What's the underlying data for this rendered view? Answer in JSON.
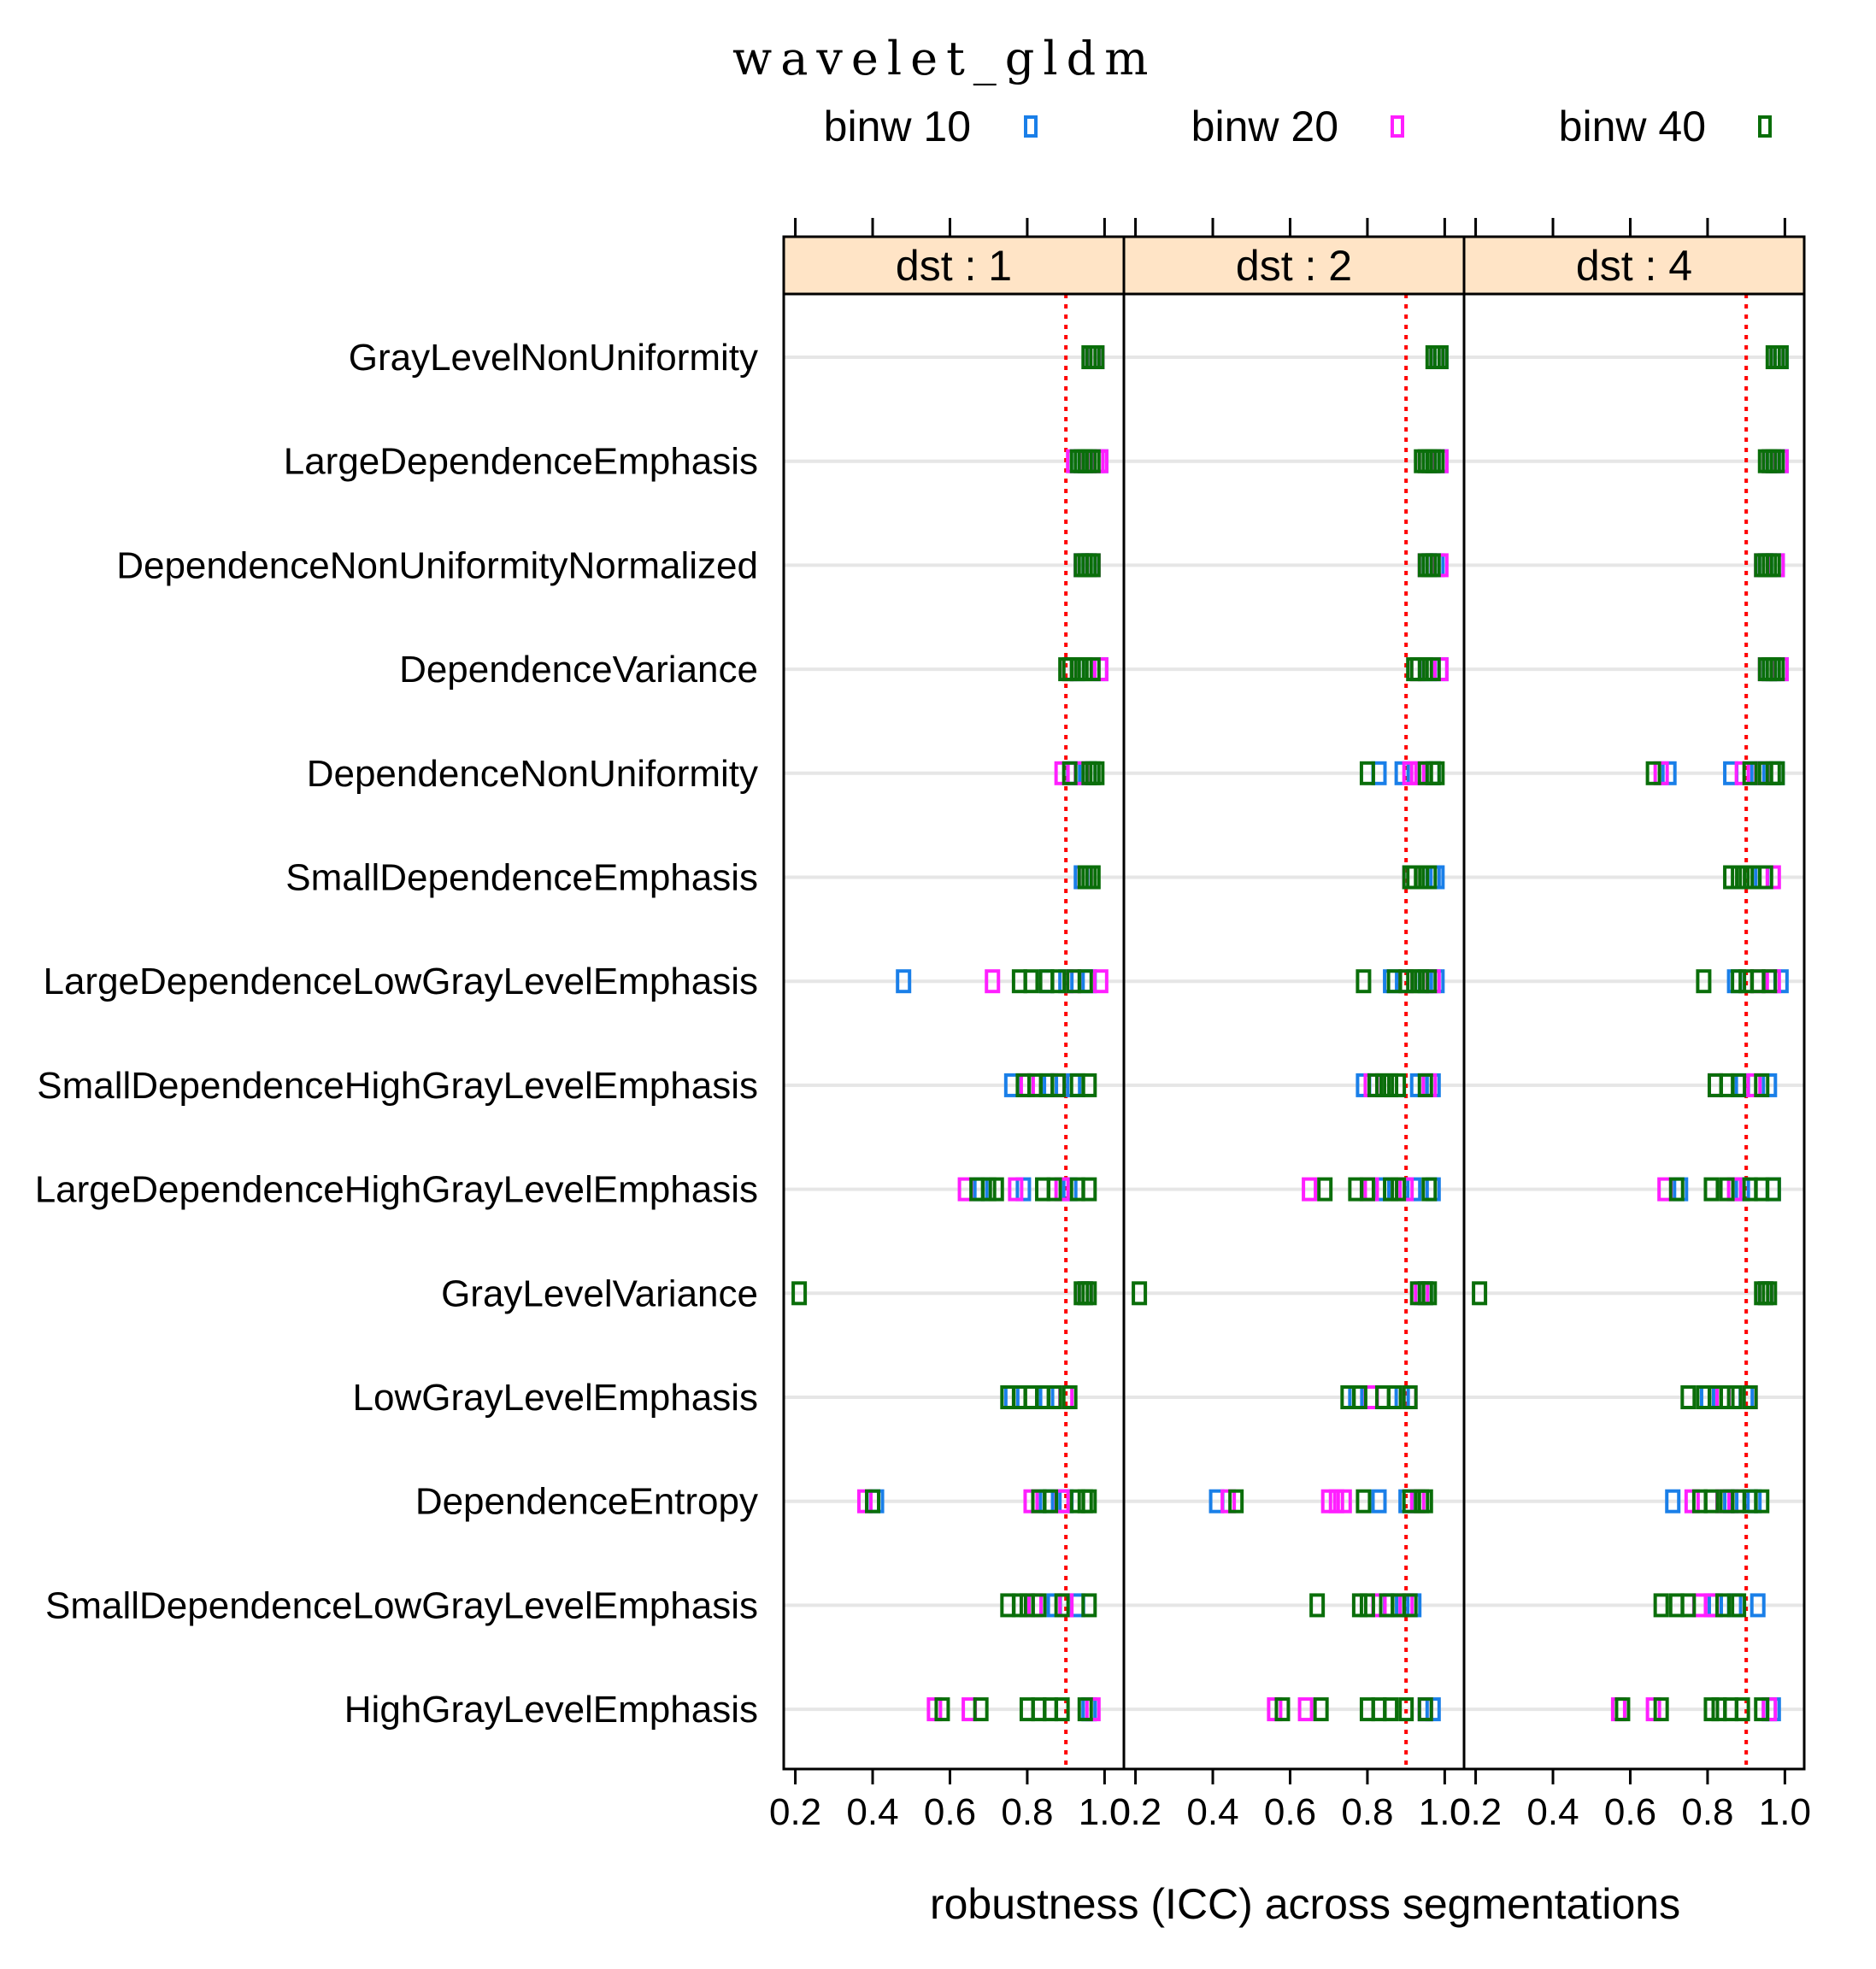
{
  "chart_data": {
    "type": "dotplot",
    "title": "wavelet_gldm",
    "xlabel": "robustness (ICC) across segmentations",
    "ylabel": "",
    "xlim": [
      0.17,
      1.05
    ],
    "x_ticks": [
      "0.2",
      "0.4",
      "0.6",
      "0.8",
      "1.0"
    ],
    "threshold": 0.9,
    "colors": {
      "binw 10": "#1a7fe8",
      "binw 20": "#ff1fff",
      "binw 40": "#0a6e0a",
      "threshold": "#ff0000",
      "strip": "#ffe4c6"
    },
    "legend": [
      {
        "label": "binw 10",
        "color": "#1a7fe8"
      },
      {
        "label": "binw 20",
        "color": "#ff1fff"
      },
      {
        "label": "binw 40",
        "color": "#0a6e0a"
      }
    ],
    "panels": [
      {
        "label": "dst : 1"
      },
      {
        "label": "dst : 2"
      },
      {
        "label": "dst : 4"
      }
    ],
    "features": [
      "GrayLevelNonUniformity",
      "LargeDependenceEmphasis",
      "DependenceNonUniformityNormalized",
      "DependenceVariance",
      "DependenceNonUniformity",
      "SmallDependenceEmphasis",
      "LargeDependenceLowGrayLevelEmphasis",
      "SmallDependenceHighGrayLevelEmphasis",
      "LargeDependenceHighGrayLevelEmphasis",
      "GrayLevelVariance",
      "LowGrayLevelEmphasis",
      "DependenceEntropy",
      "SmallDependenceLowGrayLevelEmphasis",
      "HighGrayLevelEmphasis"
    ],
    "values": [
      {
        "GrayLevelNonUniformity": {
          "binw 10": [
            0.97,
            0.98
          ],
          "binw 20": [
            0.97,
            0.98
          ],
          "binw 40": [
            0.96,
            0.97,
            0.98
          ]
        },
        "LargeDependenceEmphasis": {
          "binw 10": [
            0.93,
            0.95,
            0.99
          ],
          "binw 20": [
            0.92,
            0.98,
            0.99
          ],
          "binw 40": [
            0.93,
            0.94,
            0.95,
            0.96,
            0.97
          ]
        },
        "DependenceNonUniformityNormalized": {
          "binw 10": [
            0.94,
            0.96
          ],
          "binw 20": [
            0.94,
            0.97
          ],
          "binw 40": [
            0.94,
            0.95,
            0.96,
            0.97
          ]
        },
        "DependenceVariance": {
          "binw 10": [
            0.93,
            0.99
          ],
          "binw 20": [
            0.91,
            0.99
          ],
          "binw 40": [
            0.9,
            0.91,
            0.93,
            0.95,
            0.97
          ]
        },
        "DependenceNonUniformity": {
          "binw 10": [
            0.92,
            0.96
          ],
          "binw 20": [
            0.89,
            0.94
          ],
          "binw 40": [
            0.91,
            0.96,
            0.97,
            0.98
          ]
        },
        "SmallDependenceEmphasis": {
          "binw 10": [
            0.94
          ],
          "binw 20": [
            0.95
          ],
          "binw 40": [
            0.95,
            0.96,
            0.97
          ]
        },
        "LargeDependenceLowGrayLevelEmphasis": {
          "binw 10": [
            0.48,
            0.85,
            0.9,
            0.96
          ],
          "binw 20": [
            0.71,
            0.92,
            0.99
          ],
          "binw 40": [
            0.78,
            0.81,
            0.85,
            0.88,
            0.92,
            0.95
          ]
        },
        "SmallDependenceHighGrayLevelEmphasis": {
          "binw 10": [
            0.76,
            0.86,
            0.92
          ],
          "binw 20": [
            0.8,
            0.88
          ],
          "binw 40": [
            0.79,
            0.82,
            0.85,
            0.88,
            0.93,
            0.96
          ]
        },
        "LargeDependenceHighGrayLevelEmphasis": {
          "binw 10": [
            0.68,
            0.79,
            0.91
          ],
          "binw 20": [
            0.64,
            0.77,
            0.89
          ],
          "binw 40": [
            0.67,
            0.7,
            0.72,
            0.84,
            0.87,
            0.93,
            0.96
          ]
        },
        "GrayLevelVariance": {
          "binw 10": [
            0.95
          ],
          "binw 20": [
            0.95
          ],
          "binw 40": [
            0.21,
            0.94,
            0.95,
            0.96
          ]
        },
        "LowGrayLevelEmphasis": {
          "binw 10": [
            0.76,
            0.85
          ],
          "binw 20": [
            0.84,
            0.9
          ],
          "binw 40": [
            0.75,
            0.78,
            0.81,
            0.84,
            0.87,
            0.91
          ]
        },
        "DependenceEntropy": {
          "binw 10": [
            0.41,
            0.85,
            0.9
          ],
          "binw 20": [
            0.38,
            0.81,
            0.89
          ],
          "binw 40": [
            0.4,
            0.83,
            0.86,
            0.93,
            0.95,
            0.96
          ]
        },
        "SmallDependenceLowGrayLevelEmphasis": {
          "binw 10": [
            0.87,
            0.93
          ],
          "binw 20": [
            0.82,
            0.9
          ],
          "binw 40": [
            0.75,
            0.78,
            0.8,
            0.83,
            0.89,
            0.96
          ]
        },
        "HighGrayLevelEmphasis": {
          "binw 10": [
            0.96,
            0.96
          ],
          "binw 20": [
            0.56,
            0.65,
            0.97
          ],
          "binw 40": [
            0.58,
            0.68,
            0.8,
            0.83,
            0.86,
            0.89,
            0.95
          ]
        }
      },
      {
        "GrayLevelNonUniformity": {
          "binw 10": [
            0.98,
            0.99
          ],
          "binw 20": [
            0.98
          ],
          "binw 40": [
            0.97,
            0.98,
            0.99
          ]
        },
        "LargeDependenceEmphasis": {
          "binw 10": [
            0.97,
            0.99
          ],
          "binw 20": [
            0.95,
            0.99
          ],
          "binw 40": [
            0.94,
            0.95,
            0.96,
            0.97,
            0.98
          ]
        },
        "DependenceNonUniformityNormalized": {
          "binw 10": [
            0.96,
            0.98
          ],
          "binw 20": [
            0.95,
            0.99
          ],
          "binw 40": [
            0.95,
            0.96,
            0.97
          ]
        },
        "DependenceVariance": {
          "binw 10": [
            0.96,
            0.99
          ],
          "binw 20": [
            0.93,
            0.99
          ],
          "binw 40": [
            0.92,
            0.93,
            0.95,
            0.97
          ]
        },
        "DependenceNonUniformity": {
          "binw 10": [
            0.83,
            0.89,
            0.97
          ],
          "binw 20": [
            0.91,
            0.93
          ],
          "binw 40": [
            0.8,
            0.95,
            0.97,
            0.98
          ]
        },
        "SmallDependenceEmphasis": {
          "binw 10": [
            0.97,
            0.98
          ],
          "binw 20": [
            0.91
          ],
          "binw 40": [
            0.91,
            0.92,
            0.94,
            0.96
          ]
        },
        "LargeDependenceLowGrayLevelEmphasis": {
          "binw 10": [
            0.86,
            0.95,
            0.98
          ],
          "binw 20": [
            0.9,
            0.97
          ],
          "binw 40": [
            0.79,
            0.87,
            0.9,
            0.92,
            0.94,
            0.96
          ]
        },
        "SmallDependenceHighGrayLevelEmphasis": {
          "binw 10": [
            0.79,
            0.93,
            0.97
          ],
          "binw 20": [
            0.81,
            0.96
          ],
          "binw 40": [
            0.82,
            0.84,
            0.86,
            0.88,
            0.95
          ]
        },
        "LargeDependenceHighGrayLevelEmphasis": {
          "binw 10": [
            0.84,
            0.92,
            0.97
          ],
          "binw 20": [
            0.65,
            0.81,
            0.9
          ],
          "binw 40": [
            0.69,
            0.77,
            0.8,
            0.86,
            0.88,
            0.96
          ]
        },
        "GrayLevelVariance": {
          "binw 10": [
            0.95
          ],
          "binw 20": [
            0.94
          ],
          "binw 40": [
            0.21,
            0.93,
            0.95,
            0.96
          ]
        },
        "LowGrayLevelEmphasis": {
          "binw 10": [
            0.77,
            0.89
          ],
          "binw 20": [
            0.81,
            0.91
          ],
          "binw 40": [
            0.75,
            0.78,
            0.84,
            0.87,
            0.91
          ]
        },
        "DependenceEntropy": {
          "binw 10": [
            0.41,
            0.83,
            0.9
          ],
          "binw 20": [
            0.44,
            0.7,
            0.72,
            0.74,
            0.93
          ],
          "binw 40": [
            0.46,
            0.79,
            0.91,
            0.94,
            0.95
          ]
        },
        "SmallDependenceLowGrayLevelEmphasis": {
          "binw 10": [
            0.86,
            0.92
          ],
          "binw 20": [
            0.83,
            0.9
          ],
          "binw 40": [
            0.67,
            0.78,
            0.8,
            0.85,
            0.88,
            0.91
          ]
        },
        "HighGrayLevelEmphasis": {
          "binw 10": [
            0.95,
            0.97
          ],
          "binw 20": [
            0.56,
            0.64,
            0.95
          ],
          "binw 40": [
            0.58,
            0.68,
            0.8,
            0.83,
            0.86,
            0.9,
            0.95
          ]
        }
      },
      {
        "GrayLevelNonUniformity": {
          "binw 10": [
            0.98,
            0.99
          ],
          "binw 20": [
            0.98
          ],
          "binw 40": [
            0.97,
            0.98,
            0.99
          ]
        },
        "LargeDependenceEmphasis": {
          "binw 10": [
            0.97,
            0.99
          ],
          "binw 20": [
            0.96,
            0.99
          ],
          "binw 40": [
            0.95,
            0.96,
            0.97,
            0.98
          ]
        },
        "DependenceNonUniformityNormalized": {
          "binw 10": [
            0.95,
            0.98
          ],
          "binw 20": [
            0.94,
            0.98
          ],
          "binw 40": [
            0.94,
            0.95,
            0.96,
            0.97
          ]
        },
        "DependenceVariance": {
          "binw 10": [
            0.96,
            0.99
          ],
          "binw 20": [
            0.95,
            0.99
          ],
          "binw 40": [
            0.95,
            0.96,
            0.97,
            0.98
          ]
        },
        "DependenceNonUniformity": {
          "binw 10": [
            0.7,
            0.86,
            0.93,
            0.98
          ],
          "binw 20": [
            0.68,
            0.89,
            0.94
          ],
          "binw 40": [
            0.66,
            0.91,
            0.95,
            0.97,
            0.98
          ]
        },
        "SmallDependenceEmphasis": {
          "binw 10": [
            0.94
          ],
          "binw 20": [
            0.97
          ],
          "binw 40": [
            0.86,
            0.88,
            0.9,
            0.92,
            0.95
          ]
        },
        "LargeDependenceLowGrayLevelEmphasis": {
          "binw 10": [
            0.87,
            0.99
          ],
          "binw 20": [
            0.93,
            0.97
          ],
          "binw 40": [
            0.79,
            0.88,
            0.9,
            0.93,
            0.96
          ]
        },
        "SmallDependenceHighGrayLevelEmphasis": {
          "binw 10": [
            0.89,
            0.96
          ],
          "binw 20": [
            0.82,
            0.92
          ],
          "binw 40": [
            0.82,
            0.85,
            0.88,
            0.94
          ]
        },
        "LargeDependenceHighGrayLevelEmphasis": {
          "binw 10": [
            0.73,
            0.89,
            0.97
          ],
          "binw 20": [
            0.69,
            0.87
          ],
          "binw 40": [
            0.72,
            0.81,
            0.85,
            0.91,
            0.94,
            0.97
          ]
        },
        "GrayLevelVariance": {
          "binw 10": [
            0.95
          ],
          "binw 20": [
            0.95
          ],
          "binw 40": [
            0.21,
            0.94,
            0.95,
            0.96
          ]
        },
        "LowGrayLevelEmphasis": {
          "binw 10": [
            0.8,
            0.9
          ],
          "binw 20": [
            0.84,
            0.91
          ],
          "binw 40": [
            0.75,
            0.79,
            0.82,
            0.85,
            0.87,
            0.91
          ]
        },
        "DependenceEntropy": {
          "binw 10": [
            0.71,
            0.86,
            0.92
          ],
          "binw 20": [
            0.76,
            0.84,
            0.88
          ],
          "binw 40": [
            0.78,
            0.81,
            0.85,
            0.88,
            0.91,
            0.94
          ]
        },
        "SmallDependenceLowGrayLevelEmphasis": {
          "binw 10": [
            0.82,
            0.87,
            0.93
          ],
          "binw 20": [
            0.78,
            0.81
          ],
          "binw 40": [
            0.68,
            0.72,
            0.75,
            0.84,
            0.88
          ]
        },
        "HighGrayLevelEmphasis": {
          "binw 10": [
            0.96,
            0.97
          ],
          "binw 20": [
            0.57,
            0.66,
            0.96
          ],
          "binw 40": [
            0.58,
            0.68,
            0.81,
            0.83,
            0.86,
            0.89,
            0.94
          ]
        }
      }
    ]
  }
}
